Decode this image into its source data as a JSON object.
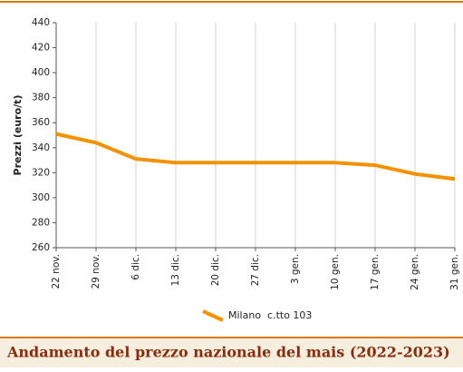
{
  "chart_data": {
    "type": "line",
    "title": "Andamento del prezzo nazionale del mais (2022-2023)",
    "y_label": "Prezzi (euro/t)",
    "categories": [
      "22 nov.",
      "29 nov.",
      "6 dic.",
      "13 dic.",
      "20 dic.",
      "27 dic.",
      "3 gen.",
      "10 gen.",
      "17 gen.",
      "24 gen.",
      "31 gen."
    ],
    "series": [
      {
        "name": "Milano  c.tto 103",
        "color": "#f39200",
        "values": [
          351,
          344,
          331,
          328,
          328,
          328,
          328,
          328,
          326,
          319,
          315
        ]
      }
    ],
    "ylim": [
      260,
      440
    ],
    "yticks": [
      260,
      280,
      300,
      320,
      340,
      360,
      380,
      400,
      420,
      440
    ],
    "grid": true
  }
}
